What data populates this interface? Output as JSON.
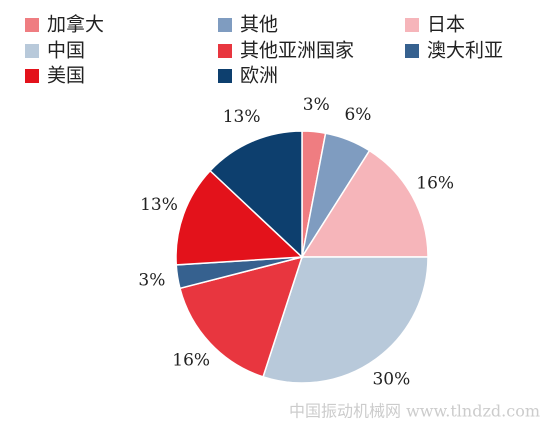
{
  "chart_data": {
    "type": "pie",
    "categories": [
      "加拿大",
      "其他",
      "日本",
      "中国",
      "其他亚洲国家",
      "澳大利亚",
      "美国",
      "欧洲"
    ],
    "values": [
      3,
      6,
      16,
      30,
      16,
      3,
      13,
      13
    ],
    "value_labels": [
      "3%",
      "6%",
      "16%",
      "30%",
      "16%",
      "3%",
      "13%",
      "13%"
    ],
    "colors": [
      "#ef7d81",
      "#7f9cc0",
      "#f6b5ba",
      "#b8c9da",
      "#e8363f",
      "#36618f",
      "#e3121b",
      "#0d3f6e"
    ],
    "legend": "top",
    "watermark": "中国振动机械网 www.tlndzd.com"
  }
}
